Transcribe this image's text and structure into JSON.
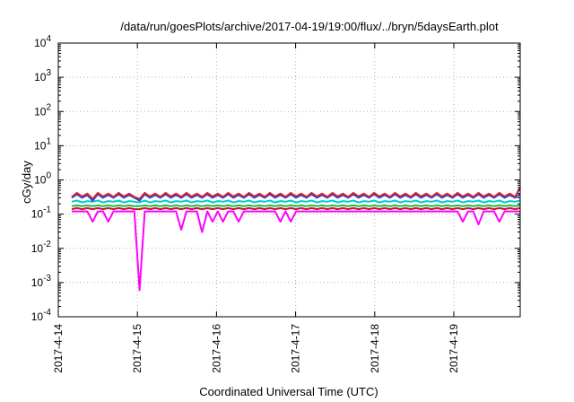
{
  "chart_data": {
    "type": "line",
    "title": "/data/run/goesPlots/archive/2017-04-19/19:00/flux/../bryn/5daysEarth.plot",
    "xlabel": "Coordinated Universal Time (UTC)",
    "ylabel": "cGy/day",
    "yscale": "log",
    "ylim": [
      0.0001,
      10000
    ],
    "y_ticks": [
      {
        "value": 0.0001,
        "base": "10",
        "exp": "-4"
      },
      {
        "value": 0.001,
        "base": "10",
        "exp": "-3"
      },
      {
        "value": 0.01,
        "base": "10",
        "exp": "-2"
      },
      {
        "value": 0.1,
        "base": "10",
        "exp": "-1"
      },
      {
        "value": 1,
        "base": "10",
        "exp": "0"
      },
      {
        "value": 10,
        "base": "10",
        "exp": "1"
      },
      {
        "value": 100,
        "base": "10",
        "exp": "2"
      },
      {
        "value": 1000,
        "base": "10",
        "exp": "3"
      },
      {
        "value": 10000,
        "base": "10",
        "exp": "4"
      }
    ],
    "xlim": [
      "2017-04-14",
      "2017-04-19 19:00"
    ],
    "x_ticks": [
      "2017-4-14",
      "2017-4-15",
      "2017-4-16",
      "2017-4-17",
      "2017-4-18",
      "2017-4-19"
    ],
    "grid": true,
    "series": [
      {
        "color": "#ff00ff",
        "values": [
          0.12,
          0.12,
          0.12,
          0.12,
          0.06,
          0.12,
          0.12,
          0.06,
          0.12,
          0.12,
          0.12,
          0.12,
          0.12,
          0.0006,
          0.12,
          0.12,
          0.12,
          0.12,
          0.12,
          0.12,
          0.12,
          0.035,
          0.12,
          0.12,
          0.12,
          0.03,
          0.12,
          0.06,
          0.12,
          0.06,
          0.12,
          0.12,
          0.06,
          0.12,
          0.12,
          0.12,
          0.12,
          0.12,
          0.12,
          0.12,
          0.06,
          0.12,
          0.06,
          0.12,
          0.12,
          0.12,
          0.12,
          0.12,
          0.12,
          0.12,
          0.12,
          0.12,
          0.12,
          0.12,
          0.12,
          0.12,
          0.12,
          0.12,
          0.12,
          0.12,
          0.12,
          0.12,
          0.12,
          0.12,
          0.12,
          0.12,
          0.12,
          0.12,
          0.12,
          0.12,
          0.12,
          0.12,
          0.12,
          0.12,
          0.12,
          0.06,
          0.12,
          0.12,
          0.05,
          0.12,
          0.12,
          0.12,
          0.06,
          0.12,
          0.12,
          0.12,
          0.12
        ]
      },
      {
        "color": "#cc1133",
        "values": [
          0.14,
          0.15,
          0.14,
          0.15,
          0.14,
          0.15,
          0.14,
          0.15,
          0.14,
          0.15,
          0.14,
          0.15,
          0.14,
          0.14,
          0.15,
          0.14,
          0.15,
          0.14,
          0.15,
          0.14,
          0.15,
          0.14,
          0.15,
          0.14,
          0.15,
          0.14,
          0.15,
          0.14,
          0.15,
          0.14,
          0.15,
          0.14,
          0.15,
          0.14,
          0.15,
          0.14,
          0.15,
          0.14,
          0.15,
          0.14,
          0.15,
          0.14,
          0.15,
          0.14,
          0.15,
          0.14,
          0.15,
          0.14,
          0.15,
          0.14,
          0.15,
          0.14,
          0.15,
          0.14,
          0.15,
          0.14,
          0.15,
          0.14,
          0.15,
          0.14,
          0.15,
          0.14,
          0.15,
          0.14,
          0.15,
          0.14,
          0.15,
          0.14,
          0.15,
          0.14,
          0.15,
          0.14,
          0.15,
          0.14,
          0.15,
          0.14,
          0.15,
          0.14,
          0.15,
          0.14,
          0.15,
          0.14,
          0.15,
          0.14,
          0.15,
          0.14,
          0.15
        ]
      },
      {
        "color": "#22bb44",
        "values": [
          0.17,
          0.18,
          0.17,
          0.18,
          0.17,
          0.18,
          0.17,
          0.18,
          0.17,
          0.18,
          0.17,
          0.18,
          0.17,
          0.17,
          0.18,
          0.17,
          0.18,
          0.17,
          0.18,
          0.17,
          0.18,
          0.17,
          0.18,
          0.17,
          0.18,
          0.17,
          0.18,
          0.17,
          0.18,
          0.17,
          0.18,
          0.17,
          0.18,
          0.17,
          0.18,
          0.17,
          0.18,
          0.17,
          0.18,
          0.17,
          0.18,
          0.17,
          0.18,
          0.17,
          0.18,
          0.17,
          0.18,
          0.17,
          0.18,
          0.17,
          0.18,
          0.17,
          0.18,
          0.17,
          0.18,
          0.17,
          0.18,
          0.17,
          0.18,
          0.17,
          0.18,
          0.17,
          0.18,
          0.17,
          0.18,
          0.17,
          0.18,
          0.17,
          0.18,
          0.17,
          0.18,
          0.17,
          0.18,
          0.17,
          0.18,
          0.17,
          0.18,
          0.17,
          0.18,
          0.17,
          0.18,
          0.17,
          0.18,
          0.17,
          0.18,
          0.17,
          0.18
        ]
      },
      {
        "color": "#00cccc",
        "values": [
          0.23,
          0.25,
          0.22,
          0.24,
          0.23,
          0.25,
          0.22,
          0.24,
          0.23,
          0.25,
          0.22,
          0.24,
          0.23,
          0.22,
          0.25,
          0.22,
          0.24,
          0.23,
          0.25,
          0.22,
          0.24,
          0.23,
          0.25,
          0.22,
          0.24,
          0.23,
          0.25,
          0.22,
          0.24,
          0.23,
          0.25,
          0.22,
          0.24,
          0.23,
          0.25,
          0.22,
          0.24,
          0.23,
          0.25,
          0.22,
          0.24,
          0.23,
          0.25,
          0.22,
          0.24,
          0.23,
          0.25,
          0.22,
          0.24,
          0.23,
          0.25,
          0.22,
          0.24,
          0.23,
          0.25,
          0.22,
          0.24,
          0.23,
          0.25,
          0.22,
          0.24,
          0.23,
          0.25,
          0.22,
          0.24,
          0.23,
          0.25,
          0.22,
          0.24,
          0.23,
          0.25,
          0.22,
          0.24,
          0.23,
          0.25,
          0.22,
          0.24,
          0.23,
          0.25,
          0.22,
          0.24,
          0.23,
          0.25,
          0.22,
          0.24,
          0.23,
          0.25
        ]
      },
      {
        "color": "#1144ff",
        "values": [
          0.3,
          0.38,
          0.3,
          0.36,
          0.25,
          0.38,
          0.3,
          0.36,
          0.3,
          0.38,
          0.3,
          0.36,
          0.3,
          0.25,
          0.38,
          0.3,
          0.36,
          0.3,
          0.38,
          0.3,
          0.36,
          0.3,
          0.38,
          0.3,
          0.36,
          0.3,
          0.38,
          0.3,
          0.36,
          0.3,
          0.38,
          0.3,
          0.36,
          0.3,
          0.38,
          0.3,
          0.36,
          0.3,
          0.38,
          0.3,
          0.36,
          0.3,
          0.38,
          0.3,
          0.36,
          0.3,
          0.38,
          0.3,
          0.36,
          0.3,
          0.38,
          0.3,
          0.36,
          0.3,
          0.38,
          0.3,
          0.36,
          0.3,
          0.38,
          0.3,
          0.36,
          0.3,
          0.38,
          0.3,
          0.36,
          0.3,
          0.38,
          0.3,
          0.36,
          0.3,
          0.38,
          0.3,
          0.36,
          0.3,
          0.38,
          0.3,
          0.36,
          0.3,
          0.38,
          0.3,
          0.36,
          0.3,
          0.38,
          0.3,
          0.36,
          0.3,
          0.38
        ]
      },
      {
        "color": "#dd2222",
        "values": [
          0.32,
          0.42,
          0.33,
          0.4,
          0.28,
          0.42,
          0.33,
          0.4,
          0.32,
          0.42,
          0.33,
          0.4,
          0.32,
          0.28,
          0.42,
          0.33,
          0.4,
          0.32,
          0.42,
          0.33,
          0.4,
          0.32,
          0.42,
          0.33,
          0.4,
          0.32,
          0.42,
          0.33,
          0.4,
          0.32,
          0.42,
          0.33,
          0.4,
          0.32,
          0.42,
          0.33,
          0.4,
          0.32,
          0.42,
          0.33,
          0.4,
          0.32,
          0.42,
          0.33,
          0.4,
          0.32,
          0.42,
          0.33,
          0.4,
          0.32,
          0.42,
          0.33,
          0.4,
          0.32,
          0.42,
          0.33,
          0.4,
          0.32,
          0.42,
          0.33,
          0.4,
          0.32,
          0.42,
          0.33,
          0.4,
          0.32,
          0.42,
          0.33,
          0.4,
          0.32,
          0.42,
          0.33,
          0.4,
          0.32,
          0.42,
          0.33,
          0.4,
          0.32,
          0.42,
          0.33,
          0.4,
          0.32,
          0.42,
          0.33,
          0.4,
          0.32,
          0.6
        ]
      }
    ]
  }
}
